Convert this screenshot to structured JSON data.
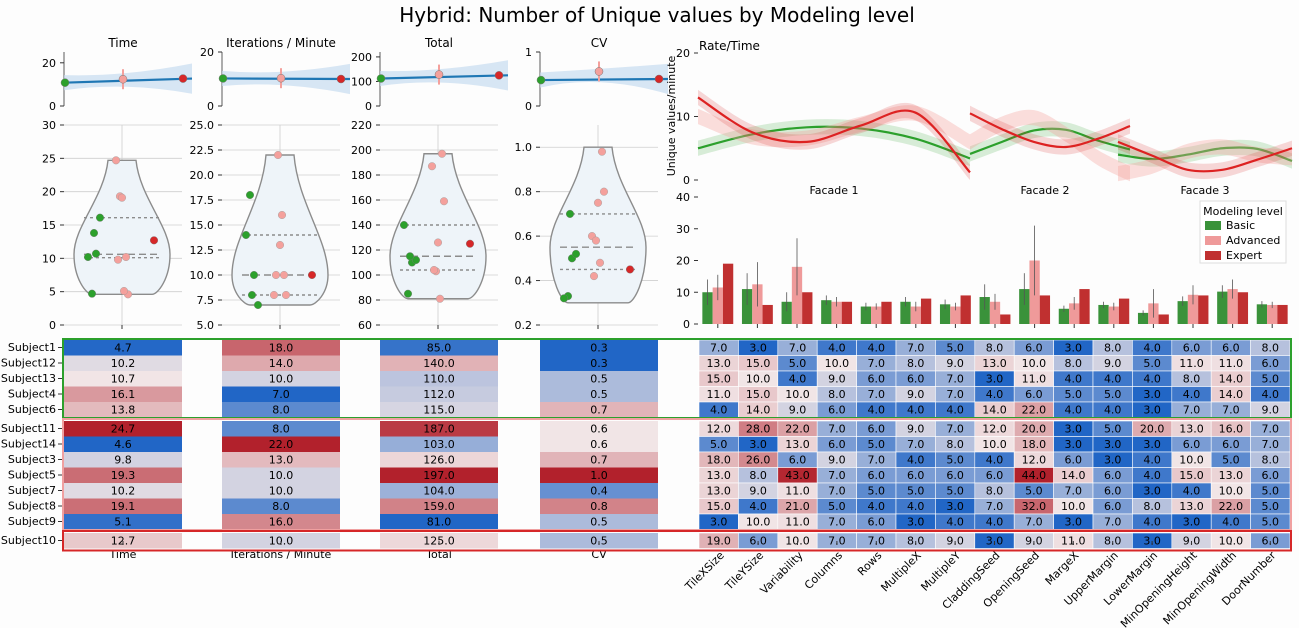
{
  "title": "Hybrid: Number of Unique values by Modeling level",
  "colors": {
    "basic": "#2ca02c",
    "basic_bar": "#3a923a",
    "advanced": "#f4a09c",
    "advanced_bar": "#ef9a9a",
    "expert": "#d62728",
    "expert_bar": "#c03030",
    "regression": "#1f77b4",
    "band": "#c6dbef",
    "violin_fill": "#eef4f9",
    "violin_edge": "#8c8c8c",
    "group_box_basic": "#2ca02c",
    "group_box_expert": "#d62728"
  },
  "chart_data": [
    {
      "type": "scatter",
      "panel": "top-regression",
      "panels": [
        {
          "title": "Time",
          "ylim": [
            0,
            25
          ],
          "yticks": [
            0,
            20
          ],
          "points": [
            10.8,
            12.4,
            12.7
          ]
        },
        {
          "title": "Iterations / Minute",
          "ylim": [
            0,
            20
          ],
          "yticks": [
            0,
            20
          ],
          "points": [
            10.2,
            10.3,
            10.0
          ]
        },
        {
          "title": "Total",
          "ylim": [
            0,
            220
          ],
          "yticks": [
            0,
            100,
            200
          ],
          "points": [
            112,
            128,
            125
          ]
        },
        {
          "title": "CV",
          "ylim": [
            0,
            1
          ],
          "yticks": [
            0,
            1
          ],
          "points": [
            0.48,
            0.64,
            0.5
          ]
        }
      ]
    },
    {
      "type": "violin",
      "panels": [
        {
          "key": "Time",
          "ylim": [
            0,
            30
          ],
          "yticks": [
            "0",
            "5",
            "10",
            "15",
            "20",
            "25",
            "30"
          ],
          "quartiles": [
            10.1,
            10.6,
            16.1
          ],
          "range": [
            4.6,
            24.7
          ],
          "basic": [
            4.7,
            10.2,
            10.7,
            16.1,
            13.8
          ],
          "advanced": [
            24.7,
            19.3,
            19.1,
            10.2,
            9.8,
            4.6,
            5.1
          ],
          "expert": [
            12.7
          ]
        },
        {
          "key": "Iterations / Minute",
          "ylim": [
            5,
            25
          ],
          "yticks": [
            "5.0",
            "7.5",
            "10.0",
            "12.5",
            "15.0",
            "17.5",
            "20.0",
            "22.5",
            "25.0"
          ],
          "quartiles": [
            8.0,
            10.0,
            14.0
          ],
          "range": [
            7.0,
            22.0
          ],
          "basic": [
            18.0,
            14.0,
            10.0,
            7.0,
            8.0
          ],
          "advanced": [
            8.0,
            22.0,
            13.0,
            10.0,
            10.0,
            8.0,
            16.0
          ],
          "expert": [
            10.0
          ]
        },
        {
          "key": "Total",
          "ylim": [
            60,
            220
          ],
          "yticks": [
            "60",
            "80",
            "100",
            "120",
            "140",
            "160",
            "180",
            "200",
            "220"
          ],
          "quartiles": [
            104.0,
            115.0,
            140.0
          ],
          "range": [
            81,
            197
          ],
          "basic": [
            85.0,
            140.0,
            110.0,
            112.0,
            115.0
          ],
          "advanced": [
            187.0,
            103.0,
            126.0,
            197.0,
            104.0,
            159.0,
            81.0
          ],
          "expert": [
            125.0
          ]
        },
        {
          "key": "CV",
          "ylim": [
            0.2,
            1.1
          ],
          "yticks": [
            "0.2",
            "0.4",
            "0.6",
            "0.8",
            "1.0"
          ],
          "quartiles": [
            0.45,
            0.55,
            0.7
          ],
          "range": [
            0.3,
            1.0
          ],
          "basic": [
            0.33,
            0.32,
            0.5,
            0.52,
            0.7
          ],
          "advanced": [
            0.6,
            0.58,
            0.75,
            0.98,
            0.42,
            0.8,
            0.48
          ],
          "expert": [
            0.45
          ]
        }
      ]
    },
    {
      "type": "line",
      "title": "Rate/Time",
      "ylabel": "Unique values/minute",
      "ylim": [
        0,
        20
      ],
      "yticks": [
        "0",
        "10",
        "20"
      ],
      "segments": [
        "Facade 1",
        "Facade 2",
        "Facade 3"
      ],
      "series": [
        {
          "name": "Basic",
          "values": [
            [
              5.0,
              7.2,
              8.3,
              8.1,
              6.5,
              3.4
            ],
            [
              4.1,
              6.0,
              7.8,
              7.9,
              6.2,
              4.8
            ],
            [
              4.0,
              3.3,
              4.0,
              5.0,
              4.9,
              3.0
            ]
          ]
        },
        {
          "name": "Advanced",
          "values": [
            [
              10.0,
              6.8,
              6.6,
              8.8,
              10.5,
              6.0
            ],
            [
              6.0,
              8.8,
              9.8,
              7.2,
              3.5,
              1.0
            ],
            [
              1.0,
              2.2,
              4.5,
              5.2,
              4.0,
              3.5
            ]
          ]
        },
        {
          "name": "Expert",
          "values": [
            [
              13.0,
              7.5,
              6.0,
              8.6,
              10.6,
              1.2
            ],
            [
              10.5,
              8.0,
              6.0,
              5.2,
              6.5,
              8.5
            ],
            [
              6.0,
              3.8,
              1.6,
              1.6,
              3.2,
              5.0
            ]
          ]
        }
      ]
    },
    {
      "type": "bar",
      "ylim": [
        0,
        40
      ],
      "yticks": [
        "0",
        "10",
        "20",
        "30",
        "40"
      ],
      "legend_title": "Modeling level",
      "legend_position": "top-right",
      "categories": [
        "TileXSize",
        "TileYSize",
        "Variability",
        "Columns",
        "Rows",
        "MultipleX",
        "MultipleY",
        "CladdingSeed",
        "OpeningSeed",
        "MargeX",
        "UpperMargin",
        "LowerMargin",
        "MinOpeningHeight",
        "MinOpeningWidth",
        "DoorNumber"
      ],
      "series": [
        {
          "name": "Basic",
          "values": [
            10.0,
            11.0,
            7.0,
            7.5,
            5.5,
            7.0,
            6.2,
            8.5,
            11.0,
            4.8,
            6.0,
            3.5,
            7.2,
            10.2,
            6.2
          ]
        },
        {
          "name": "Advanced",
          "values": [
            11.5,
            12.5,
            18.0,
            7.0,
            5.5,
            5.5,
            5.5,
            7.0,
            20.0,
            6.5,
            5.5,
            6.5,
            9.2,
            11.0,
            6.0
          ]
        },
        {
          "name": "Expert",
          "values": [
            19.0,
            6.0,
            10.0,
            7.0,
            7.0,
            8.0,
            9.0,
            3.0,
            9.0,
            11.0,
            8.0,
            3.0,
            9.0,
            10.0,
            6.0
          ]
        }
      ],
      "errors": {
        "Basic": [
          4,
          5,
          3,
          1.5,
          1.2,
          1.5,
          1.5,
          4,
          5,
          1,
          1,
          0.8,
          1.5,
          2,
          1
        ],
        "Advanced": [
          4,
          7,
          9,
          1.5,
          1,
          1.5,
          1.2,
          2.5,
          11,
          2,
          1.2,
          4.5,
          3,
          3,
          1
        ]
      }
    },
    {
      "type": "heatmap",
      "subjects": [
        "Subject1",
        "Subject12",
        "Subject13",
        "Subject4",
        "Subject6",
        "Subject11",
        "Subject14",
        "Subject3",
        "Subject5",
        "Subject7",
        "Subject8",
        "Subject9",
        "Subject10"
      ],
      "groups": {
        "basic_rows": [
          0,
          4
        ],
        "advanced_rows": [
          5,
          11
        ],
        "expert_rows": [
          12,
          12
        ]
      },
      "metric_columns": [
        "Time",
        "Iterations / Minute",
        "Total",
        "CV"
      ],
      "metrics": [
        [
          4.7,
          18.0,
          85.0,
          0.3
        ],
        [
          10.2,
          14.0,
          140.0,
          0.3
        ],
        [
          10.7,
          10.0,
          110.0,
          0.5
        ],
        [
          16.1,
          7.0,
          112.0,
          0.5
        ],
        [
          13.8,
          8.0,
          115.0,
          0.7
        ],
        [
          24.7,
          8.0,
          187.0,
          0.6
        ],
        [
          4.6,
          22.0,
          103.0,
          0.6
        ],
        [
          9.8,
          13.0,
          126.0,
          0.7
        ],
        [
          19.3,
          10.0,
          197.0,
          1.0
        ],
        [
          10.2,
          10.0,
          104.0,
          0.4
        ],
        [
          19.1,
          8.0,
          159.0,
          0.8
        ],
        [
          5.1,
          16.0,
          81.0,
          0.5
        ],
        [
          12.7,
          10.0,
          125.0,
          0.5
        ]
      ],
      "metric_labels": [
        [
          "4.7",
          "18.0",
          "85.0",
          "0.3"
        ],
        [
          "10.2",
          "14.0",
          "140.0",
          "0.3"
        ],
        [
          "10.7",
          "10.0",
          "110.0",
          "0.5"
        ],
        [
          "16.1",
          "7.0",
          "112.0",
          "0.5"
        ],
        [
          "13.8",
          "8.0",
          "115.0",
          "0.7"
        ],
        [
          "24.7",
          "8.0",
          "187.0",
          "0.6"
        ],
        [
          "4.6",
          "22.0",
          "103.0",
          "0.6"
        ],
        [
          "9.8",
          "13.0",
          "126.0",
          "0.7"
        ],
        [
          "19.3",
          "10.0",
          "197.0",
          "1.0"
        ],
        [
          "10.2",
          "10.0",
          "104.0",
          "0.4"
        ],
        [
          "19.1",
          "8.0",
          "159.0",
          "0.8"
        ],
        [
          "5.1",
          "16.0",
          "81.0",
          "0.5"
        ],
        [
          "12.7",
          "10.0",
          "125.0",
          "0.5"
        ]
      ],
      "parameter_columns": [
        "TileXSize",
        "TileYSize",
        "Variability",
        "Columns",
        "Rows",
        "MultipleX",
        "MultipleY",
        "CladdingSeed",
        "OpeningSeed",
        "MargeX",
        "UpperMargin",
        "LowerMargin",
        "MinOpeningHeight",
        "MinOpeningWidth",
        "DoorNumber"
      ],
      "parameters": [
        [
          7,
          3,
          7,
          4,
          4,
          7,
          5,
          8,
          6,
          3,
          8,
          4,
          6,
          6,
          8
        ],
        [
          13,
          15,
          5,
          10,
          7,
          8,
          9,
          13,
          10,
          8,
          9,
          5,
          11,
          11,
          6
        ],
        [
          15,
          10,
          4,
          9,
          6,
          6,
          7,
          3,
          11,
          4,
          4,
          4,
          8,
          14,
          5
        ],
        [
          11,
          15,
          10,
          8,
          7,
          9,
          7,
          4,
          6,
          5,
          5,
          3,
          4,
          14,
          4
        ],
        [
          4,
          14,
          9,
          6,
          4,
          4,
          4,
          14,
          22,
          4,
          4,
          3,
          7,
          7,
          9
        ],
        [
          12,
          28,
          22,
          7,
          6,
          9,
          7,
          12,
          20,
          3,
          5,
          20,
          13,
          16,
          7
        ],
        [
          5,
          3,
          13,
          6,
          5,
          7,
          8,
          10,
          18,
          3,
          3,
          3,
          6,
          6,
          7
        ],
        [
          18,
          26,
          6,
          9,
          7,
          4,
          5,
          4,
          12,
          6,
          3,
          4,
          10,
          5,
          8
        ],
        [
          13,
          8,
          43,
          7,
          6,
          6,
          6,
          6,
          44,
          14,
          6,
          4,
          15,
          13,
          6
        ],
        [
          13,
          9,
          11,
          7,
          5,
          5,
          5,
          8,
          5,
          7,
          6,
          3,
          4,
          10,
          5
        ],
        [
          15,
          4,
          21,
          5,
          4,
          4,
          3,
          7,
          32,
          10,
          6,
          8,
          13,
          22,
          5
        ],
        [
          3,
          10,
          11,
          7,
          6,
          3,
          4,
          4,
          7,
          3,
          7,
          4,
          3,
          4,
          5
        ],
        [
          19,
          6,
          10,
          7,
          7,
          8,
          9,
          3,
          9,
          11,
          8,
          3,
          9,
          10,
          6
        ]
      ],
      "parameter_labels": [
        [
          "7.0",
          "3.0",
          "7.0",
          "4.0",
          "4.0",
          "7.0",
          "5.0",
          "8.0",
          "6.0",
          "3.0",
          "8.0",
          "4.0",
          "6.0",
          "6.0",
          "8.0"
        ],
        [
          "13.0",
          "15.0",
          "5.0",
          "10.0",
          "7.0",
          "8.0",
          "9.0",
          "13.0",
          "10.0",
          "8.0",
          "9.0",
          "5.0",
          "11.0",
          "11.0",
          "6.0"
        ],
        [
          "15.0",
          "10.0",
          "4.0",
          "9.0",
          "6.0",
          "6.0",
          "7.0",
          "3.0",
          "11.0",
          "4.0",
          "4.0",
          "4.0",
          "8.0",
          "14.0",
          "5.0"
        ],
        [
          "11.0",
          "15.0",
          "10.0",
          "8.0",
          "7.0",
          "9.0",
          "7.0",
          "4.0",
          "6.0",
          "5.0",
          "5.0",
          "3.0",
          "4.0",
          "14.0",
          "4.0"
        ],
        [
          "4.0",
          "14.0",
          "9.0",
          "6.0",
          "4.0",
          "4.0",
          "4.0",
          "14.0",
          "22.0",
          "4.0",
          "4.0",
          "3.0",
          "7.0",
          "7.0",
          "9.0"
        ],
        [
          "12.0",
          "28.0",
          "22.0",
          "7.0",
          "6.0",
          "9.0",
          "7.0",
          "12.0",
          "20.0",
          "3.0",
          "5.0",
          "20.0",
          "13.0",
          "16.0",
          "7.0"
        ],
        [
          "5.0",
          "3.0",
          "13.0",
          "6.0",
          "5.0",
          "7.0",
          "8.0",
          "10.0",
          "18.0",
          "3.0",
          "3.0",
          "3.0",
          "6.0",
          "6.0",
          "7.0"
        ],
        [
          "18.0",
          "26.0",
          "6.0",
          "9.0",
          "7.0",
          "4.0",
          "5.0",
          "4.0",
          "12.0",
          "6.0",
          "3.0",
          "4.0",
          "10.0",
          "5.0",
          "8.0"
        ],
        [
          "13.0",
          "8.0",
          "43.0",
          "7.0",
          "6.0",
          "6.0",
          "6.0",
          "6.0",
          "44.0",
          "14.0",
          "6.0",
          "4.0",
          "15.0",
          "13.0",
          "6.0"
        ],
        [
          "13.0",
          "9.0",
          "11.0",
          "7.0",
          "5.0",
          "5.0",
          "5.0",
          "8.0",
          "5.0",
          "7.0",
          "6.0",
          "3.0",
          "4.0",
          "10.0",
          "5.0"
        ],
        [
          "15.0",
          "4.0",
          "21.0",
          "5.0",
          "4.0",
          "4.0",
          "3.0",
          "7.0",
          "32.0",
          "10.0",
          "6.0",
          "8.0",
          "13.0",
          "22.0",
          "5.0"
        ],
        [
          "3.0",
          "10.0",
          "11.0",
          "7.0",
          "6.0",
          "3.0",
          "4.0",
          "4.0",
          "7.0",
          "3.0",
          "7.0",
          "4.0",
          "3.0",
          "4.0",
          "5.0"
        ],
        [
          "19.0",
          "6.0",
          "10.0",
          "7.0",
          "7.0",
          "8.0",
          "9.0",
          "3.0",
          "9.0",
          "11.0",
          "8.0",
          "3.0",
          "9.0",
          "10.0",
          "6.0"
        ]
      ]
    }
  ]
}
